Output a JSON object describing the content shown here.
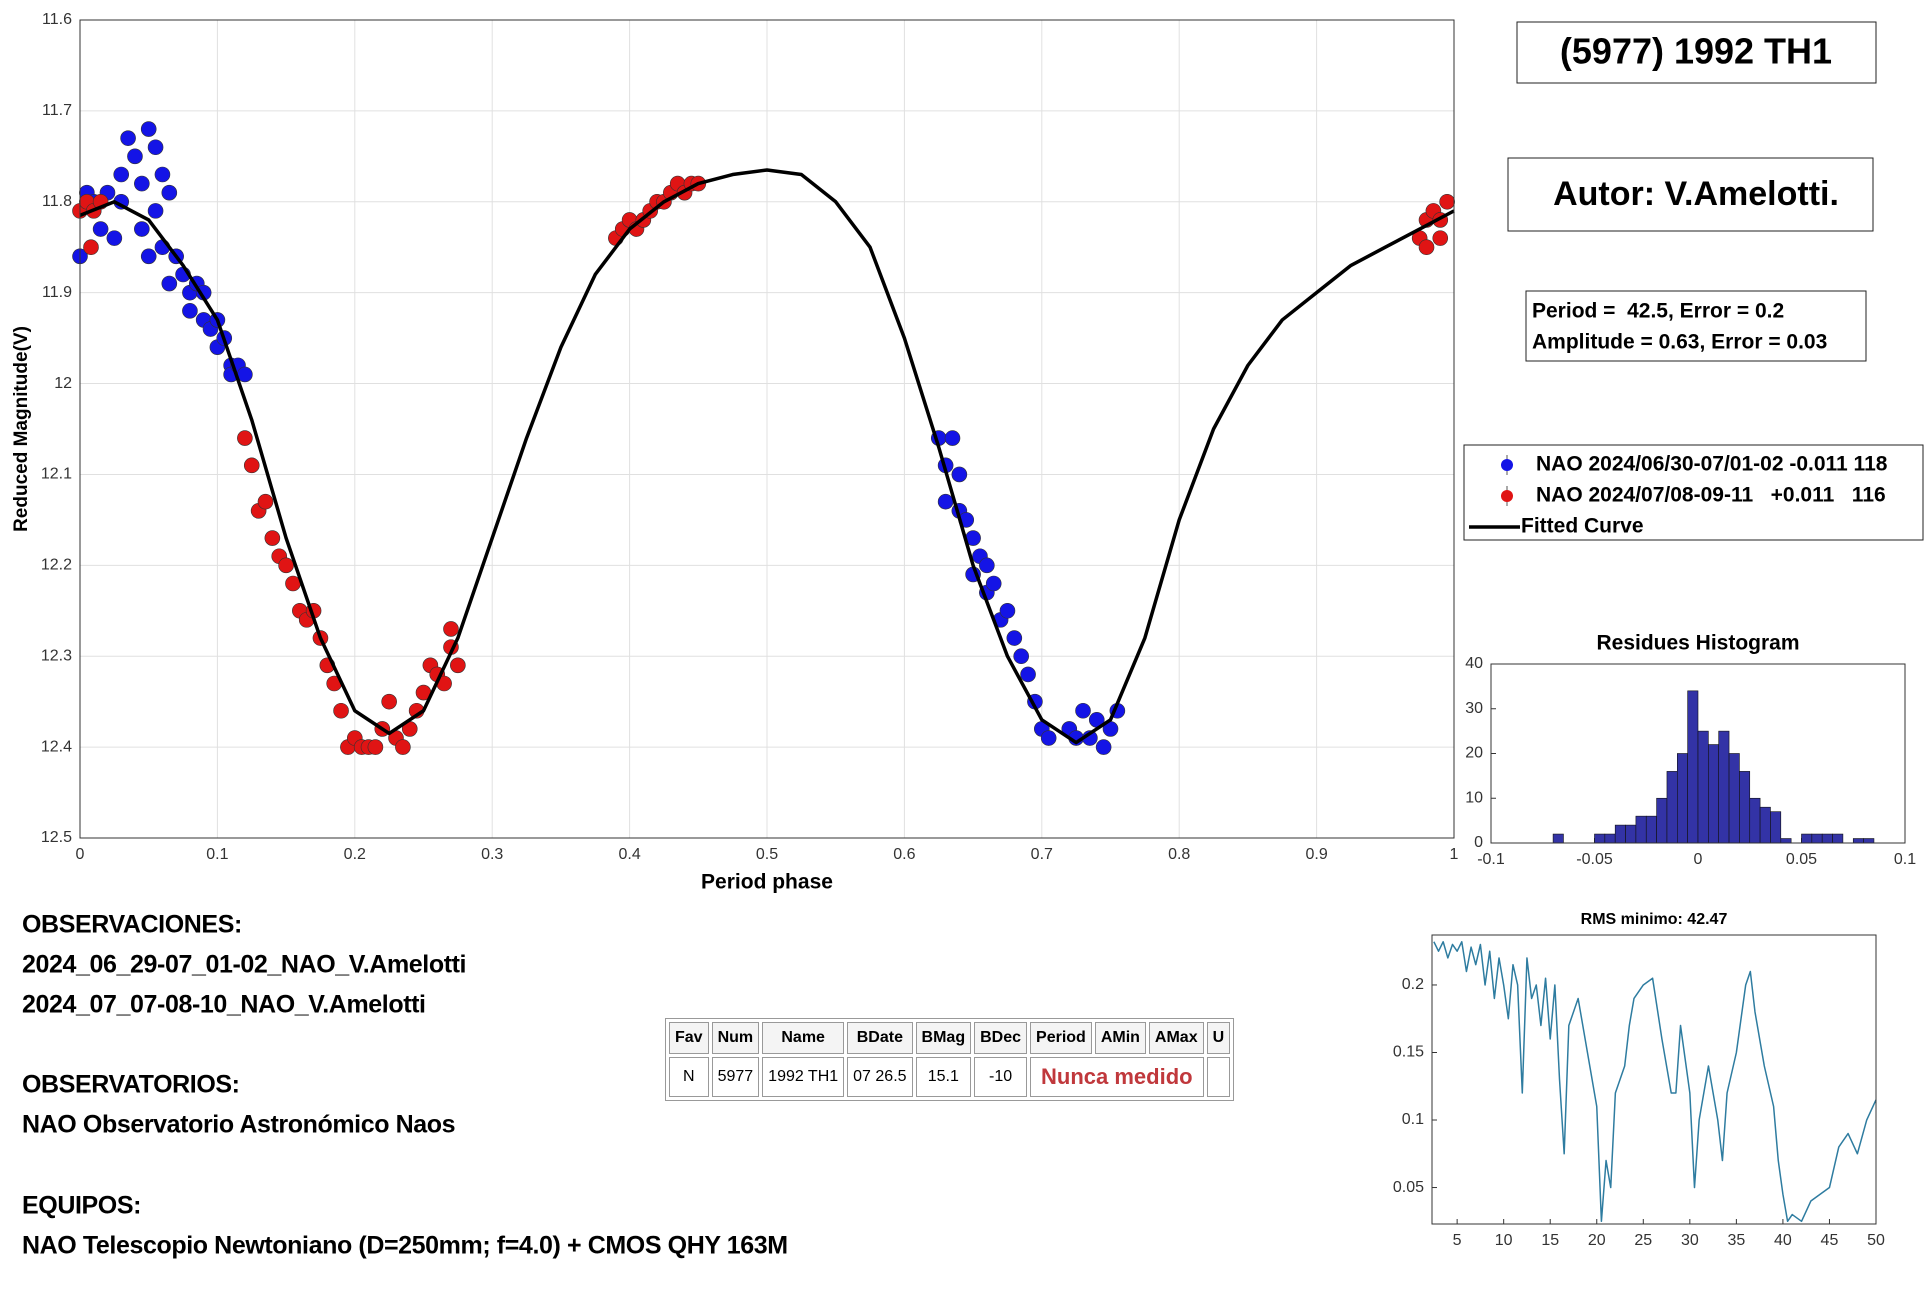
{
  "chart_data": [
    {
      "type": "scatter",
      "title": "(5977) 1992 TH1",
      "xlabel": "Period phase",
      "ylabel": "Reduced Magnitude(V)",
      "xlim": [
        0,
        1
      ],
      "ylim": [
        12.5,
        11.6
      ],
      "xticks": [
        0,
        0.1,
        0.2,
        0.3,
        0.4,
        0.5,
        0.6,
        0.7,
        0.8,
        0.9,
        1
      ],
      "yticks": [
        11.6,
        11.7,
        11.8,
        11.9,
        12,
        12.1,
        12.2,
        12.3,
        12.4,
        12.5
      ],
      "grid": true,
      "legend": "right",
      "annotations": [
        "Autor: V.Amelotti.",
        "Period =  42.5, Error = 0.2",
        "Amplitude = 0.63, Error = 0.03"
      ],
      "series": [
        {
          "name": "NAO 2024/06/30-07/01-02 -0.011 118",
          "color": "#1414e6",
          "type": "scatter",
          "x": [
            0.0,
            0.005,
            0.01,
            0.015,
            0.02,
            0.025,
            0.03,
            0.03,
            0.035,
            0.04,
            0.045,
            0.045,
            0.05,
            0.05,
            0.055,
            0.055,
            0.06,
            0.06,
            0.065,
            0.065,
            0.07,
            0.075,
            0.08,
            0.08,
            0.085,
            0.09,
            0.09,
            0.095,
            0.1,
            0.1,
            0.105,
            0.11,
            0.11,
            0.115,
            0.12,
            0.625,
            0.63,
            0.63,
            0.635,
            0.64,
            0.64,
            0.645,
            0.65,
            0.65,
            0.655,
            0.66,
            0.66,
            0.665,
            0.67,
            0.675,
            0.68,
            0.685,
            0.69,
            0.695,
            0.7,
            0.705,
            0.72,
            0.725,
            0.73,
            0.735,
            0.74,
            0.745,
            0.75,
            0.755
          ],
          "values": [
            11.86,
            11.79,
            11.8,
            11.83,
            11.79,
            11.84,
            11.8,
            11.77,
            11.73,
            11.75,
            11.78,
            11.83,
            11.86,
            11.72,
            11.74,
            11.81,
            11.77,
            11.85,
            11.89,
            11.79,
            11.86,
            11.88,
            11.9,
            11.92,
            11.89,
            11.93,
            11.9,
            11.94,
            11.93,
            11.96,
            11.95,
            11.98,
            11.99,
            11.98,
            11.99,
            12.06,
            12.09,
            12.13,
            12.06,
            12.1,
            12.14,
            12.15,
            12.17,
            12.21,
            12.19,
            12.23,
            12.2,
            12.22,
            12.26,
            12.25,
            12.28,
            12.3,
            12.32,
            12.35,
            12.38,
            12.39,
            12.38,
            12.39,
            12.36,
            12.39,
            12.37,
            12.4,
            12.38,
            12.36
          ]
        },
        {
          "name": "NAO 2024/07/08-09-11   +0.011   116",
          "color": "#e01414",
          "type": "scatter",
          "x": [
            0.0,
            0.005,
            0.01,
            0.015,
            0.008,
            0.12,
            0.125,
            0.13,
            0.135,
            0.14,
            0.145,
            0.15,
            0.155,
            0.16,
            0.165,
            0.17,
            0.175,
            0.18,
            0.185,
            0.19,
            0.195,
            0.2,
            0.205,
            0.21,
            0.215,
            0.22,
            0.225,
            0.23,
            0.235,
            0.24,
            0.245,
            0.25,
            0.255,
            0.26,
            0.265,
            0.27,
            0.275,
            0.27,
            0.39,
            0.395,
            0.4,
            0.405,
            0.41,
            0.415,
            0.42,
            0.425,
            0.43,
            0.435,
            0.44,
            0.445,
            0.45,
            0.975,
            0.98,
            0.985,
            0.99,
            0.995,
            0.98,
            0.99
          ],
          "values": [
            11.81,
            11.8,
            11.81,
            11.8,
            11.85,
            12.06,
            12.09,
            12.14,
            12.13,
            12.17,
            12.19,
            12.2,
            12.22,
            12.25,
            12.26,
            12.25,
            12.28,
            12.31,
            12.33,
            12.36,
            12.4,
            12.39,
            12.4,
            12.4,
            12.4,
            12.38,
            12.35,
            12.39,
            12.4,
            12.38,
            12.36,
            12.34,
            12.31,
            12.32,
            12.33,
            12.29,
            12.31,
            12.27,
            11.84,
            11.83,
            11.82,
            11.83,
            11.82,
            11.81,
            11.8,
            11.8,
            11.79,
            11.78,
            11.79,
            11.78,
            11.78,
            11.84,
            11.82,
            11.81,
            11.82,
            11.8,
            11.85,
            11.84
          ]
        },
        {
          "name": "Fitted Curve",
          "color": "#000000",
          "type": "line",
          "x": [
            0,
            0.025,
            0.05,
            0.075,
            0.1,
            0.125,
            0.15,
            0.175,
            0.2,
            0.225,
            0.25,
            0.275,
            0.3,
            0.325,
            0.35,
            0.375,
            0.4,
            0.425,
            0.45,
            0.475,
            0.5,
            0.525,
            0.55,
            0.575,
            0.6,
            0.625,
            0.65,
            0.675,
            0.7,
            0.725,
            0.75,
            0.775,
            0.8,
            0.825,
            0.85,
            0.875,
            0.9,
            0.925,
            0.95,
            0.975,
            1
          ],
          "values": [
            11.815,
            11.8,
            11.82,
            11.87,
            11.93,
            12.04,
            12.17,
            12.28,
            12.36,
            12.385,
            12.36,
            12.28,
            12.17,
            12.06,
            11.96,
            11.88,
            11.83,
            11.8,
            11.78,
            11.77,
            11.765,
            11.77,
            11.8,
            11.85,
            11.95,
            12.07,
            12.2,
            12.3,
            12.37,
            12.395,
            12.37,
            12.28,
            12.15,
            12.05,
            11.98,
            11.93,
            11.9,
            11.87,
            11.85,
            11.83,
            11.81
          ]
        }
      ]
    },
    {
      "type": "histogram",
      "title": "Residues Histogram",
      "color": "#3333a6",
      "bins": [
        -0.07,
        -0.065,
        -0.06,
        -0.055,
        -0.05,
        -0.045,
        -0.04,
        -0.035,
        -0.03,
        -0.025,
        -0.02,
        -0.015,
        -0.01,
        -0.005,
        0,
        0.005,
        0.01,
        0.015,
        0.02,
        0.025,
        0.03,
        0.035,
        0.04,
        0.045,
        0.05,
        0.055,
        0.06,
        0.065,
        0.07,
        0.075,
        0.08,
        0.085
      ],
      "values": [
        2,
        0,
        0,
        0,
        2,
        2,
        4,
        4,
        6,
        6,
        10,
        16,
        20,
        34,
        25,
        22,
        25,
        20,
        16,
        10,
        8,
        7,
        1,
        0,
        2,
        2,
        2,
        2,
        0,
        1,
        1
      ],
      "xlim": [
        -0.1,
        0.1
      ],
      "xticks": [
        -0.1,
        -0.05,
        0,
        0.05,
        0.1
      ],
      "ylim": [
        0,
        40
      ],
      "yticks": [
        0,
        10,
        20,
        30,
        40
      ]
    },
    {
      "type": "line",
      "title": "RMS minimo: 42.47",
      "color": "#2e7ca0",
      "x": [
        2.5,
        3,
        3.5,
        4,
        4.5,
        5,
        5.5,
        6,
        6.5,
        7,
        7.5,
        8,
        8.5,
        9,
        9.5,
        10,
        10.5,
        11,
        11.5,
        12,
        12.5,
        13,
        13.5,
        14,
        14.5,
        15,
        15.5,
        16,
        16.5,
        17,
        18,
        19,
        20,
        20.5,
        21,
        21.5,
        22,
        23,
        23.5,
        24,
        25,
        26,
        27,
        28,
        28.5,
        29,
        30,
        30.5,
        31,
        32,
        33,
        33.5,
        34,
        35,
        36,
        36.5,
        37,
        38,
        39,
        39.5,
        40,
        40.5,
        41,
        42,
        43,
        44,
        45,
        46,
        47,
        48,
        49,
        50
      ],
      "values": [
        0.232,
        0.225,
        0.232,
        0.22,
        0.23,
        0.225,
        0.232,
        0.21,
        0.228,
        0.215,
        0.23,
        0.2,
        0.225,
        0.19,
        0.22,
        0.2,
        0.175,
        0.215,
        0.2,
        0.12,
        0.22,
        0.19,
        0.2,
        0.17,
        0.205,
        0.16,
        0.2,
        0.13,
        0.075,
        0.17,
        0.19,
        0.15,
        0.11,
        0.025,
        0.07,
        0.05,
        0.12,
        0.14,
        0.17,
        0.19,
        0.2,
        0.205,
        0.16,
        0.12,
        0.12,
        0.17,
        0.12,
        0.05,
        0.1,
        0.14,
        0.1,
        0.07,
        0.12,
        0.15,
        0.2,
        0.21,
        0.18,
        0.14,
        0.11,
        0.07,
        0.045,
        0.025,
        0.03,
        0.025,
        0.04,
        0.045,
        0.05,
        0.08,
        0.09,
        0.075,
        0.1,
        0.115
      ],
      "xlim": [
        2.3,
        50
      ],
      "xticks": [
        5,
        10,
        15,
        20,
        25,
        30,
        35,
        40,
        45,
        50
      ],
      "ylim": [
        0.023,
        0.237
      ],
      "yticks": [
        0.05,
        0.1,
        0.15,
        0.2
      ]
    }
  ],
  "notes": [
    {
      "heading": "OBSERVACIONES:",
      "lines": [
        "2024_06_29-07_01-02_NAO_V.Amelotti",
        "2024_07_07-08-10_NAO_V.Amelotti"
      ]
    },
    {
      "heading": "OBSERVATORIOS:",
      "lines": [
        "NAO Observatorio Astronómico Naos"
      ]
    },
    {
      "heading": "EQUIPOS:",
      "lines": [
        "NAO Telescopio Newtoniano (D=250mm; f=4.0) + CMOS QHY 163M"
      ]
    }
  ],
  "table": {
    "headers": [
      "Fav",
      "Num",
      "Name",
      "BDate",
      "BMag",
      "BDec",
      "Period",
      "AMin",
      "AMax",
      "U"
    ],
    "rows": [
      [
        "N",
        "5977",
        "1992 TH1",
        "07 26.5",
        "15.1",
        "-10",
        "Nunca medido"
      ]
    ]
  }
}
